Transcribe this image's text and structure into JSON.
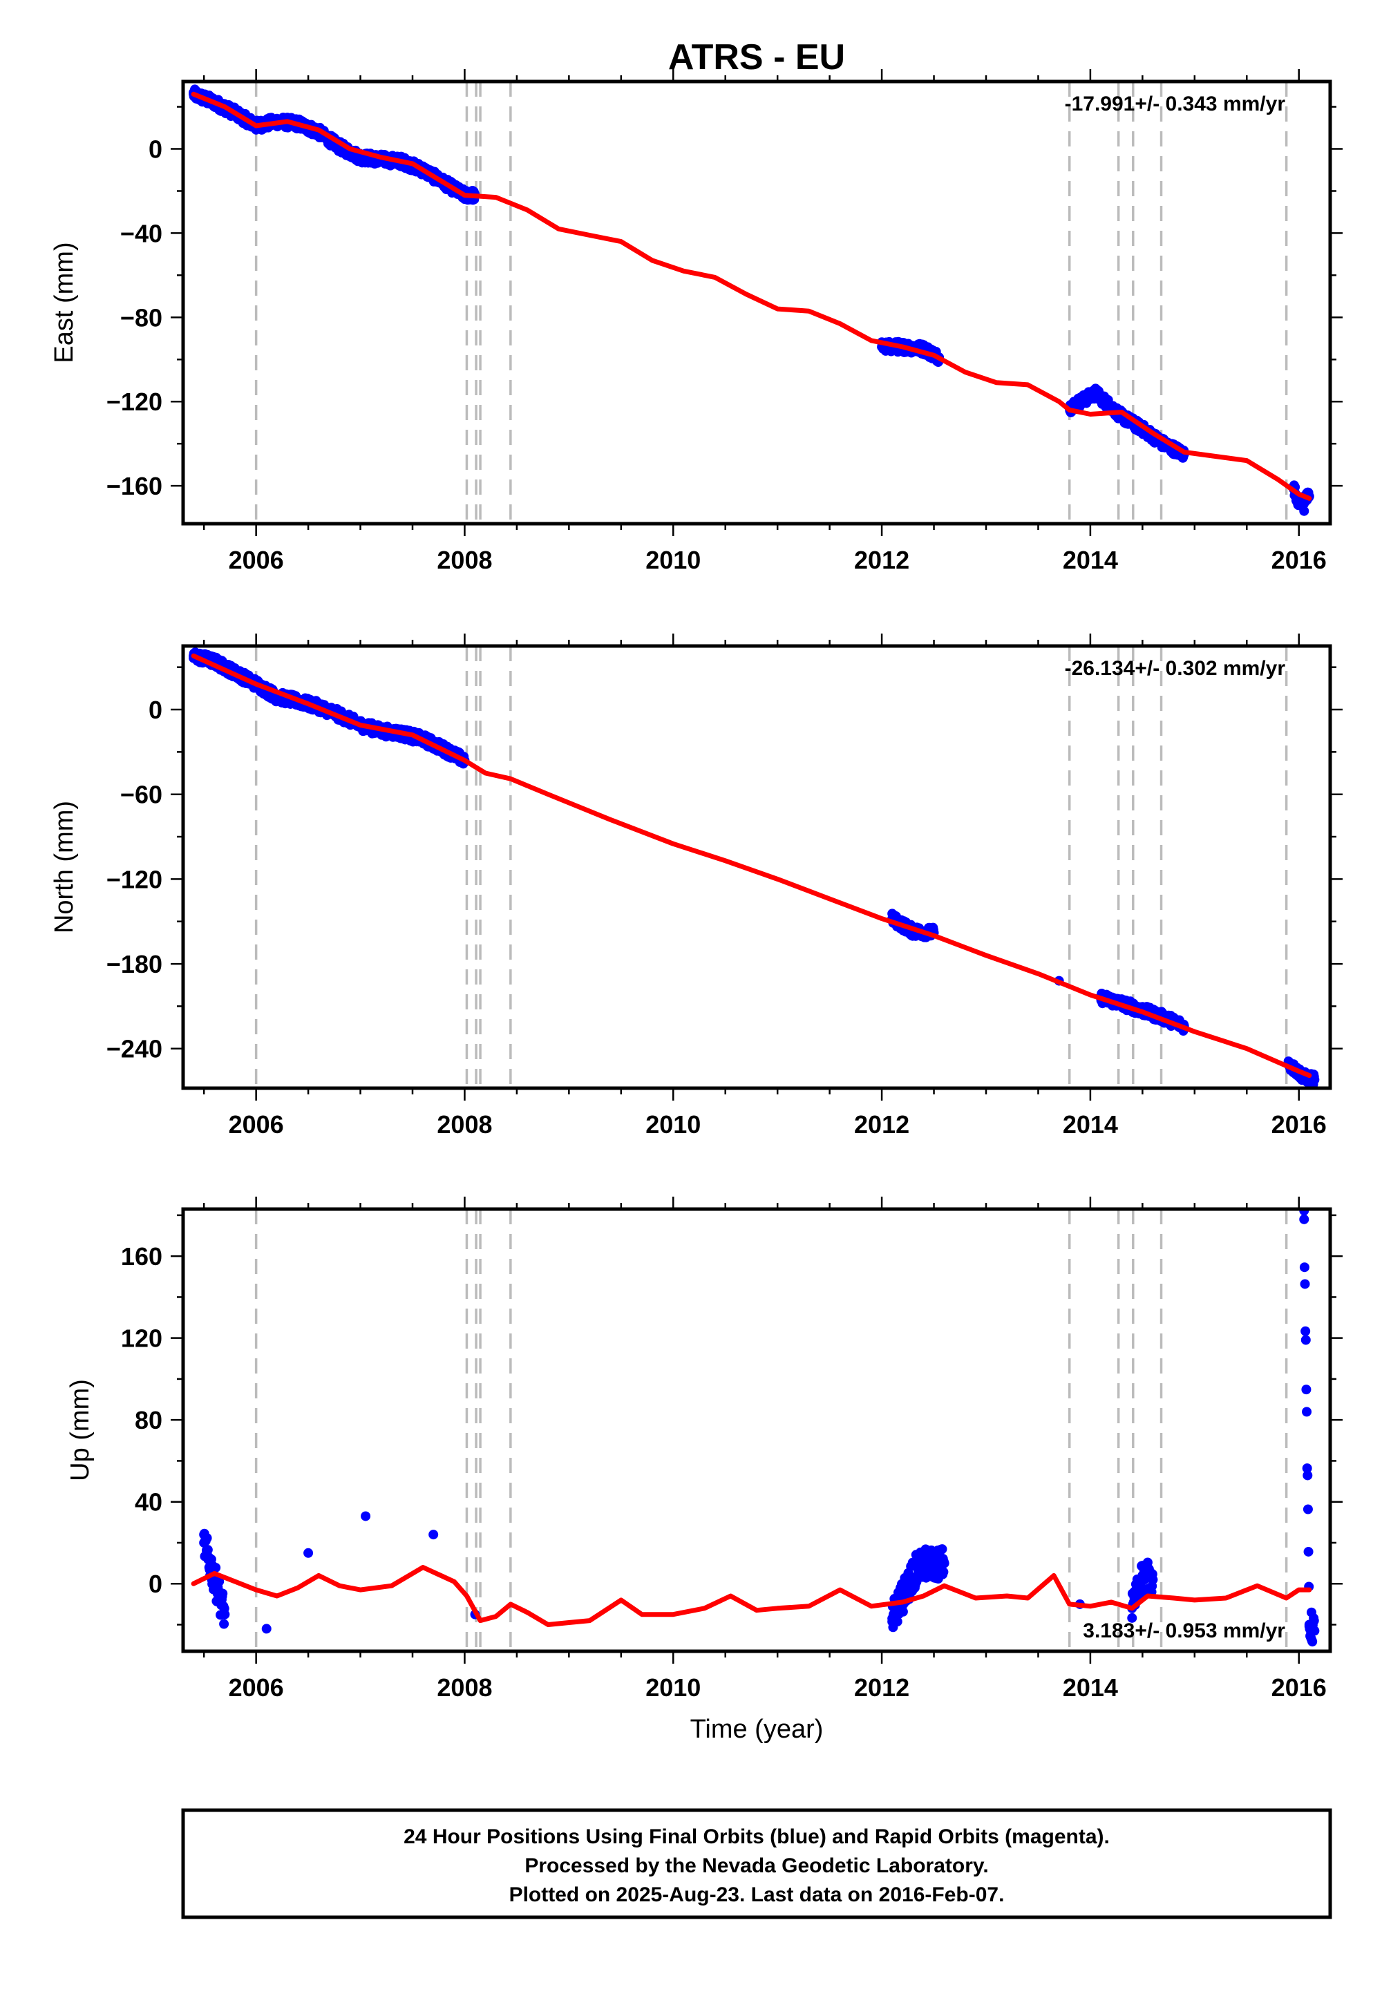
{
  "title": "ATRS - EU",
  "xlabel": "Time (year)",
  "footer": [
    "24 Hour Positions Using Final Orbits (blue) and Rapid Orbits (magenta).",
    "Processed by the Nevada Geodetic Laboratory.",
    "Plotted on 2025-Aug-23. Last data on 2016-Feb-07."
  ],
  "colors": {
    "observations": "#0000ff",
    "model": "#ff0000",
    "events": "#bbbbbb"
  },
  "chart_data": [
    {
      "type": "scatter",
      "ylabel": "East (mm)",
      "rate": "-17.991+/- 0.343 mm/yr",
      "xlim": [
        2005.3,
        2016.3
      ],
      "ylim": [
        -178,
        32
      ],
      "xticks": [
        "2006",
        "2008",
        "2010",
        "2012",
        "2014",
        "2016"
      ],
      "yticks": [
        "0",
        "-40",
        "-80",
        "-120",
        "-160"
      ],
      "events": [
        2006.0,
        2008.02,
        2008.11,
        2008.15,
        2008.44,
        2013.8,
        2014.27,
        2014.41,
        2014.68,
        2015.88
      ],
      "series": [
        {
          "points": [
            [
              2005.4,
              26
            ],
            [
              2005.6,
              22
            ],
            [
              2005.8,
              17
            ],
            [
              2006.0,
              11
            ],
            [
              2006.2,
              13
            ],
            [
              2006.4,
              12
            ],
            [
              2006.6,
              8
            ],
            [
              2006.8,
              1
            ],
            [
              2007.0,
              -4
            ],
            [
              2007.2,
              -5
            ],
            [
              2007.4,
              -6
            ],
            [
              2007.6,
              -10
            ],
            [
              2007.8,
              -16
            ],
            [
              2008.0,
              -22
            ],
            [
              2008.1,
              -22
            ],
            [
              2012.0,
              -94
            ],
            [
              2012.2,
              -94
            ],
            [
              2012.4,
              -95
            ],
            [
              2012.55,
              -99
            ],
            [
              2013.8,
              -123
            ],
            [
              2014.05,
              -116
            ],
            [
              2014.3,
              -127
            ],
            [
              2014.5,
              -133
            ],
            [
              2014.7,
              -140
            ],
            [
              2014.9,
              -145
            ],
            [
              2015.95,
              -161
            ],
            [
              2016.0,
              -168
            ],
            [
              2016.1,
              -165
            ],
            [
              2016.05,
              -172
            ]
          ]
        },
        {
          "line": [
            [
              2005.4,
              26
            ],
            [
              2005.7,
              20
            ],
            [
              2006.0,
              11
            ],
            [
              2006.3,
              13
            ],
            [
              2006.6,
              9
            ],
            [
              2006.9,
              0
            ],
            [
              2007.2,
              -4
            ],
            [
              2007.5,
              -7
            ],
            [
              2007.8,
              -16
            ],
            [
              2008.0,
              -22
            ],
            [
              2008.3,
              -23
            ],
            [
              2008.6,
              -29
            ],
            [
              2008.9,
              -38
            ],
            [
              2009.2,
              -41
            ],
            [
              2009.5,
              -44
            ],
            [
              2009.8,
              -53
            ],
            [
              2010.1,
              -58
            ],
            [
              2010.4,
              -61
            ],
            [
              2010.7,
              -69
            ],
            [
              2011.0,
              -76
            ],
            [
              2011.3,
              -77
            ],
            [
              2011.6,
              -83
            ],
            [
              2011.9,
              -91
            ],
            [
              2012.2,
              -94
            ],
            [
              2012.5,
              -98
            ],
            [
              2012.8,
              -106
            ],
            [
              2013.1,
              -111
            ],
            [
              2013.4,
              -112
            ],
            [
              2013.7,
              -120
            ],
            [
              2013.8,
              -124
            ],
            [
              2014.0,
              -126
            ],
            [
              2014.3,
              -125
            ],
            [
              2014.6,
              -135
            ],
            [
              2014.9,
              -144
            ],
            [
              2015.2,
              -146
            ],
            [
              2015.5,
              -148
            ],
            [
              2015.8,
              -157
            ],
            [
              2016.0,
              -164
            ],
            [
              2016.1,
              -166
            ]
          ]
        }
      ]
    },
    {
      "type": "scatter",
      "ylabel": "North (mm)",
      "rate": "-26.134+/- 0.302 mm/yr",
      "xlim": [
        2005.3,
        2016.3
      ],
      "ylim": [
        -268,
        45
      ],
      "xticks": [
        "2006",
        "2008",
        "2010",
        "2012",
        "2014",
        "2016"
      ],
      "yticks": [
        "0",
        "-60",
        "-120",
        "-180",
        "-240"
      ],
      "events": [
        2006.0,
        2008.02,
        2008.11,
        2008.15,
        2008.44,
        2013.8,
        2014.27,
        2014.41,
        2014.68,
        2015.88
      ],
      "series": [
        {
          "points": [
            [
              2005.4,
              38
            ],
            [
              2005.6,
              34
            ],
            [
              2005.8,
              26
            ],
            [
              2006.0,
              18
            ],
            [
              2006.2,
              9
            ],
            [
              2006.4,
              6
            ],
            [
              2006.6,
              2
            ],
            [
              2006.8,
              -4
            ],
            [
              2007.0,
              -11
            ],
            [
              2007.2,
              -15
            ],
            [
              2007.4,
              -17
            ],
            [
              2007.6,
              -21
            ],
            [
              2007.8,
              -28
            ],
            [
              2008.0,
              -36
            ],
            [
              2012.1,
              -148
            ],
            [
              2012.3,
              -157
            ],
            [
              2012.5,
              -158
            ],
            [
              2013.7,
              -192
            ],
            [
              2014.1,
              -204
            ],
            [
              2014.3,
              -208
            ],
            [
              2014.5,
              -213
            ],
            [
              2014.7,
              -218
            ],
            [
              2014.9,
              -224
            ],
            [
              2015.9,
              -251
            ],
            [
              2016.05,
              -260
            ],
            [
              2016.15,
              -262
            ]
          ]
        },
        {
          "line": [
            [
              2005.4,
              38
            ],
            [
              2006.0,
              18
            ],
            [
              2006.5,
              4
            ],
            [
              2007.0,
              -11
            ],
            [
              2007.5,
              -18
            ],
            [
              2008.0,
              -36
            ],
            [
              2008.2,
              -45
            ],
            [
              2008.44,
              -49
            ],
            [
              2008.8,
              -60
            ],
            [
              2009.4,
              -78
            ],
            [
              2010.0,
              -95
            ],
            [
              2010.5,
              -107
            ],
            [
              2011.0,
              -120
            ],
            [
              2011.5,
              -134
            ],
            [
              2012.0,
              -148
            ],
            [
              2012.5,
              -160
            ],
            [
              2013.0,
              -174
            ],
            [
              2013.5,
              -187
            ],
            [
              2014.0,
              -202
            ],
            [
              2014.5,
              -214
            ],
            [
              2015.0,
              -228
            ],
            [
              2015.5,
              -240
            ],
            [
              2016.0,
              -256
            ],
            [
              2016.1,
              -259
            ]
          ]
        }
      ]
    },
    {
      "type": "scatter",
      "ylabel": "Up (mm)",
      "rate": "3.183+/- 0.953 mm/yr",
      "xlim": [
        2005.3,
        2016.3
      ],
      "ylim": [
        -33,
        183
      ],
      "xticks": [
        "2006",
        "2008",
        "2010",
        "2012",
        "2014",
        "2016"
      ],
      "yticks": [
        "160",
        "120",
        "80",
        "40",
        "0"
      ],
      "events": [
        2006.0,
        2008.02,
        2008.11,
        2008.15,
        2008.44,
        2013.8,
        2014.27,
        2014.41,
        2014.68,
        2015.88
      ],
      "series": [
        {
          "points": [
            [
              2005.5,
              20
            ],
            [
              2005.7,
              -15
            ],
            [
              2006.1,
              -22
            ],
            [
              2006.5,
              15
            ],
            [
              2007.05,
              33
            ],
            [
              2007.7,
              24
            ],
            [
              2008.1,
              -15
            ],
            [
              2012.1,
              -17
            ],
            [
              2012.35,
              9
            ],
            [
              2012.6,
              10
            ],
            [
              2013.9,
              -10
            ],
            [
              2014.4,
              -12
            ],
            [
              2014.5,
              4
            ],
            [
              2014.6,
              2
            ],
            [
              2016.05,
              178
            ],
            [
              2016.1,
              -20
            ],
            [
              2016.15,
              -23
            ]
          ]
        },
        {
          "line": [
            [
              2005.4,
              0
            ],
            [
              2005.6,
              5
            ],
            [
              2005.8,
              1
            ],
            [
              2006.0,
              -3
            ],
            [
              2006.2,
              -6
            ],
            [
              2006.4,
              -2
            ],
            [
              2006.6,
              4
            ],
            [
              2006.8,
              -1
            ],
            [
              2007.0,
              -3
            ],
            [
              2007.3,
              -1
            ],
            [
              2007.6,
              8
            ],
            [
              2007.9,
              1
            ],
            [
              2008.02,
              -6
            ],
            [
              2008.15,
              -18
            ],
            [
              2008.3,
              -16
            ],
            [
              2008.44,
              -10
            ],
            [
              2008.6,
              -14
            ],
            [
              2008.8,
              -20
            ],
            [
              2009.0,
              -19
            ],
            [
              2009.2,
              -18
            ],
            [
              2009.5,
              -8
            ],
            [
              2009.7,
              -15
            ],
            [
              2010.0,
              -15
            ],
            [
              2010.3,
              -12
            ],
            [
              2010.55,
              -6
            ],
            [
              2010.8,
              -13
            ],
            [
              2011.0,
              -12
            ],
            [
              2011.3,
              -11
            ],
            [
              2011.6,
              -3
            ],
            [
              2011.9,
              -11
            ],
            [
              2012.2,
              -9
            ],
            [
              2012.4,
              -6
            ],
            [
              2012.6,
              -1
            ],
            [
              2012.9,
              -7
            ],
            [
              2013.2,
              -6
            ],
            [
              2013.4,
              -7
            ],
            [
              2013.65,
              4
            ],
            [
              2013.8,
              -10
            ],
            [
              2014.0,
              -11
            ],
            [
              2014.2,
              -9
            ],
            [
              2014.4,
              -12
            ],
            [
              2014.55,
              -6
            ],
            [
              2014.8,
              -7
            ],
            [
              2015.0,
              -8
            ],
            [
              2015.3,
              -7
            ],
            [
              2015.6,
              -1
            ],
            [
              2015.88,
              -7
            ],
            [
              2016.0,
              -3
            ],
            [
              2016.1,
              -3
            ]
          ]
        }
      ]
    }
  ]
}
